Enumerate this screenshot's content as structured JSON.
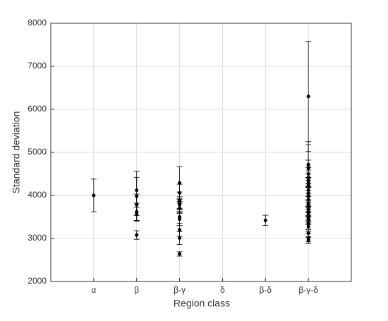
{
  "chart_data": {
    "type": "errorbar-strip",
    "x_label": "Region class",
    "y_label": "Standard deviation",
    "categories": [
      "α",
      "β",
      "β-γ",
      "δ",
      "β-δ",
      "β-γ-δ"
    ],
    "values": [
      [
        4000
      ],
      [
        4120,
        3980,
        3780,
        3620,
        3570,
        3080
      ],
      [
        4290,
        4060,
        3880,
        3820,
        3780,
        3700,
        3500,
        3450,
        3200,
        3010,
        2640
      ],
      [],
      [
        3420
      ],
      [
        6300,
        4720,
        4700,
        4620,
        4500,
        4420,
        4350,
        4300,
        4260,
        4200,
        4120,
        4050,
        3980,
        3900,
        3820,
        3750,
        3680,
        3620,
        3600,
        3560,
        3480,
        3420,
        3350,
        3280,
        3120,
        3020,
        2960
      ]
    ],
    "errors": [
      [
        380
      ],
      [
        300,
        580,
        250,
        200,
        150,
        100
      ],
      [
        380,
        200,
        200,
        150,
        150,
        120,
        200,
        150,
        150,
        150,
        50
      ],
      [],
      [
        120
      ],
      [
        1280,
        530,
        480,
        200,
        150,
        150,
        150,
        120,
        150,
        200,
        150,
        150,
        200,
        150,
        150,
        120,
        150,
        120,
        150,
        150,
        120,
        100,
        150,
        120,
        100,
        100,
        80
      ]
    ],
    "color": "#000000",
    "ylim": [
      2000,
      8000
    ],
    "yticks": [
      2000,
      3000,
      4000,
      5000,
      6000,
      7000,
      8000
    ],
    "grid": true
  }
}
